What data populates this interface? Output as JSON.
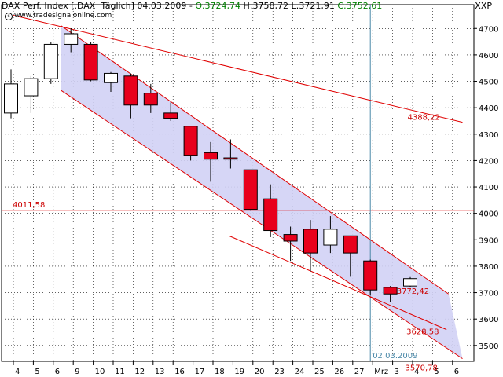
{
  "header": {
    "instrument": "DAX Perf. Index [.DAX  Täglich]",
    "date": "04.03.2009",
    "open": "O:3724,74",
    "high": "H:3758,72",
    "low": "L:3721,91",
    "close": "C:3752,61",
    "open_color": "#008000",
    "close_color": "#008000"
  },
  "source": "www.tradesignalonline.com",
  "corner_label": "XXP",
  "colors": {
    "down_candle": "#e8001c",
    "up_candle": "#ffffff",
    "trendline": "#e00000",
    "channel_fill": "#d2d2f5",
    "vertical_marker": "#4a88a8",
    "label_text": "#cc0000"
  },
  "chart_data": {
    "type": "candlestick",
    "title": "DAX Perf. Index [.DAX  Täglich]",
    "y_range": [
      3440,
      4790
    ],
    "y_ticks": [
      3500,
      3600,
      3700,
      3800,
      3900,
      4000,
      4100,
      4200,
      4300,
      4400,
      4500,
      4600,
      4700
    ],
    "y_tick_labels": [
      "3500",
      "3600",
      "3700",
      "3800",
      "3900",
      "4000",
      "4100",
      "4200",
      "4300",
      "4400",
      "4500",
      "4600",
      "4700"
    ],
    "x_tick_labels": [
      "4",
      "5",
      "6",
      "9",
      "10",
      "11",
      "12",
      "13",
      "16",
      "17",
      "18",
      "19",
      "20",
      "23",
      "24",
      "25",
      "26",
      "27",
      "Mrz",
      "3",
      "4",
      "5",
      "6"
    ],
    "grid": true,
    "candles": [
      {
        "x": "4",
        "open": 4380,
        "high": 4545,
        "low": 4360,
        "close": 4490
      },
      {
        "x": "5",
        "open": 4445,
        "high": 4520,
        "low": 4380,
        "close": 4510
      },
      {
        "x": "6",
        "open": 4510,
        "high": 4650,
        "low": 4490,
        "close": 4640
      },
      {
        "x": "9",
        "open": 4640,
        "high": 4700,
        "low": 4610,
        "close": 4680
      },
      {
        "x": "10",
        "open": 4640,
        "high": 4650,
        "low": 4500,
        "close": 4505
      },
      {
        "x": "11",
        "open": 4495,
        "high": 4535,
        "low": 4460,
        "close": 4530
      },
      {
        "x": "12",
        "open": 4520,
        "high": 4530,
        "low": 4360,
        "close": 4410
      },
      {
        "x": "13",
        "open": 4455,
        "high": 4490,
        "low": 4380,
        "close": 4410
      },
      {
        "x": "16",
        "open": 4380,
        "high": 4420,
        "low": 4350,
        "close": 4360
      },
      {
        "x": "17",
        "open": 4330,
        "high": 4330,
        "low": 4200,
        "close": 4220
      },
      {
        "x": "18",
        "open": 4230,
        "high": 4270,
        "low": 4120,
        "close": 4205
      },
      {
        "x": "19",
        "open": 4210,
        "high": 4280,
        "low": 4170,
        "close": 4205
      },
      {
        "x": "20",
        "open": 4165,
        "high": 4165,
        "low": 4010,
        "close": 4015
      },
      {
        "x": "23",
        "open": 4055,
        "high": 4110,
        "low": 3910,
        "close": 3935
      },
      {
        "x": "24",
        "open": 3920,
        "high": 3950,
        "low": 3820,
        "close": 3895
      },
      {
        "x": "25",
        "open": 3940,
        "high": 3975,
        "low": 3780,
        "close": 3850
      },
      {
        "x": "26",
        "open": 3880,
        "high": 3990,
        "low": 3850,
        "close": 3940
      },
      {
        "x": "27",
        "open": 3915,
        "high": 3915,
        "low": 3760,
        "close": 3850
      },
      {
        "x": "Mrz",
        "open": 3820,
        "high": 3825,
        "low": 3690,
        "close": 3710
      },
      {
        "x": "3",
        "open": 3720,
        "high": 3725,
        "low": 3665,
        "close": 3695
      },
      {
        "x": "4",
        "open": 3725,
        "high": 3759,
        "low": 3722,
        "close": 3753
      }
    ],
    "horizontal_lines": [
      {
        "value": 4011.58,
        "label": "4011,58"
      }
    ],
    "trendlines": [
      {
        "label": "4388,22",
        "points": [
          {
            "x": 0,
            "y": 4750
          },
          {
            "x": 22.5,
            "y": 4345
          }
        ]
      },
      {
        "label": "3772,42",
        "points": [
          {
            "x": 2.4,
            "y": 4710
          },
          {
            "x": 21.8,
            "y": 3695
          }
        ]
      },
      {
        "label": "3570,78",
        "points": [
          {
            "x": 2.4,
            "y": 4465
          },
          {
            "x": 22.5,
            "y": 3450
          }
        ]
      },
      {
        "label": "3628,58",
        "points": [
          {
            "x": 10.8,
            "y": 3915
          },
          {
            "x": 21.7,
            "y": 3560
          }
        ]
      }
    ],
    "vertical_marker": {
      "x": "Mrz",
      "label": "02.03.2009"
    }
  }
}
